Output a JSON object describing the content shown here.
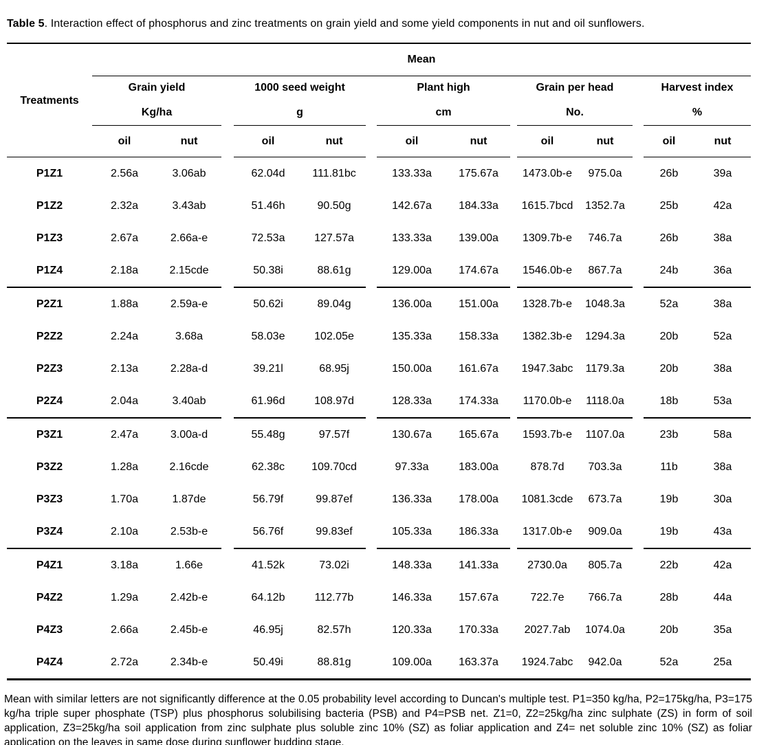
{
  "title": {
    "label_bold": "Table 5",
    "label_rest": ". Interaction effect of phosphorus and zinc treatments on grain yield and some yield components in nut and oil sunflowers."
  },
  "table": {
    "mean_label": "Mean",
    "treatments_label": "Treatments",
    "groups": [
      {
        "name": "Grain yield",
        "unit": "Kg/ha"
      },
      {
        "name": "1000 seed weight",
        "unit": "g"
      },
      {
        "name": "Plant high",
        "unit": "cm"
      },
      {
        "name": "Grain per head",
        "unit": "No."
      },
      {
        "name": "Harvest index",
        "unit": "%"
      }
    ],
    "subheaders": [
      "oil",
      "nut"
    ],
    "rows": [
      {
        "treatment": "P1Z1",
        "values": [
          "2.56a",
          "3.06ab",
          "62.04d",
          "111.81bc",
          "133.33a",
          "175.67a",
          "1473.0b-e",
          "975.0a",
          "26b",
          "39a"
        ]
      },
      {
        "treatment": "P1Z2",
        "values": [
          "2.32a",
          "3.43ab",
          "51.46h",
          "90.50g",
          "142.67a",
          "184.33a",
          "1615.7bcd",
          "1352.7a",
          "25b",
          "42a"
        ]
      },
      {
        "treatment": "P1Z3",
        "values": [
          "2.67a",
          "2.66a-e",
          "72.53a",
          "127.57a",
          "133.33a",
          "139.00a",
          "1309.7b-e",
          "746.7a",
          "26b",
          "38a"
        ]
      },
      {
        "treatment": "P1Z4",
        "values": [
          "2.18a",
          "2.15cde",
          "50.38i",
          "88.61g",
          "129.00a",
          "174.67a",
          "1546.0b-e",
          "867.7a",
          "24b",
          "36a"
        ]
      },
      {
        "treatment": "P2Z1",
        "values": [
          "1.88a",
          "2.59a-e",
          "50.62i",
          "89.04g",
          "136.00a",
          "151.00a",
          "1328.7b-e",
          "1048.3a",
          "52a",
          "38a"
        ]
      },
      {
        "treatment": "P2Z2",
        "values": [
          "2.24a",
          "3.68a",
          "58.03e",
          "102.05e",
          "135.33a",
          "158.33a",
          "1382.3b-e",
          "1294.3a",
          "20b",
          "52a"
        ]
      },
      {
        "treatment": "P2Z3",
        "values": [
          "2.13a",
          "2.28a-d",
          "39.21l",
          "68.95j",
          "150.00a",
          "161.67a",
          "1947.3abc",
          "1179.3a",
          "20b",
          "38a"
        ]
      },
      {
        "treatment": "P2Z4",
        "values": [
          "2.04a",
          "3.40ab",
          "61.96d",
          "108.97d",
          "128.33a",
          "174.33a",
          "1170.0b-e",
          "1118.0a",
          "18b",
          "53a"
        ]
      },
      {
        "treatment": "P3Z1",
        "values": [
          "2.47a",
          "3.00a-d",
          "55.48g",
          "97.57f",
          "130.67a",
          "165.67a",
          "1593.7b-e",
          "1107.0a",
          "23b",
          "58a"
        ]
      },
      {
        "treatment": "P3Z2",
        "values": [
          "1.28a",
          "2.16cde",
          "62.38c",
          "109.70cd",
          "97.33a",
          "183.00a",
          "878.7d",
          "703.3a",
          "11b",
          "38a"
        ]
      },
      {
        "treatment": "P3Z3",
        "values": [
          "1.70a",
          "1.87de",
          "56.79f",
          "99.87ef",
          "136.33a",
          "178.00a",
          "1081.3cde",
          "673.7a",
          "19b",
          "30a"
        ]
      },
      {
        "treatment": "P3Z4",
        "values": [
          "2.10a",
          "2.53b-e",
          "56.76f",
          "99.83ef",
          "105.33a",
          "186.33a",
          "1317.0b-e",
          "909.0a",
          "19b",
          "43a"
        ]
      },
      {
        "treatment": "P4Z1",
        "values": [
          "3.18a",
          "1.66e",
          "41.52k",
          "73.02i",
          "148.33a",
          "141.33a",
          "2730.0a",
          "805.7a",
          "22b",
          "42a"
        ]
      },
      {
        "treatment": "P4Z2",
        "values": [
          "1.29a",
          "2.42b-e",
          "64.12b",
          "112.77b",
          "146.33a",
          "157.67a",
          "722.7e",
          "766.7a",
          "28b",
          "44a"
        ]
      },
      {
        "treatment": "P4Z3",
        "values": [
          "2.66a",
          "2.45b-e",
          "46.95j",
          "82.57h",
          "120.33a",
          "170.33a",
          "2027.7ab",
          "1074.0a",
          "20b",
          "35a"
        ]
      },
      {
        "treatment": "P4Z4",
        "values": [
          "2.72a",
          "2.34b-e",
          "50.49i",
          "88.81g",
          "109.00a",
          "163.37a",
          "1924.7abc",
          "942.0a",
          "52a",
          "25a"
        ]
      }
    ]
  },
  "footnote": "Mean with similar letters are not significantly difference at the 0.05 probability level according to Duncan's multiple test. P1=350 kg/ha, P2=175kg/ha, P3=175 kg/ha triple super phosphate (TSP) plus phosphorus solubilising bacteria (PSB) and P4=PSB net. Z1=0, Z2=25kg/ha zinc sulphate (ZS) in form of soil application, Z3=25kg/ha soil application from zinc sulphate plus soluble zinc 10% (SZ) as foliar application and Z4= net soluble zinc 10% (SZ) as foliar application on the leaves in same dose during sunflower budding stage."
}
